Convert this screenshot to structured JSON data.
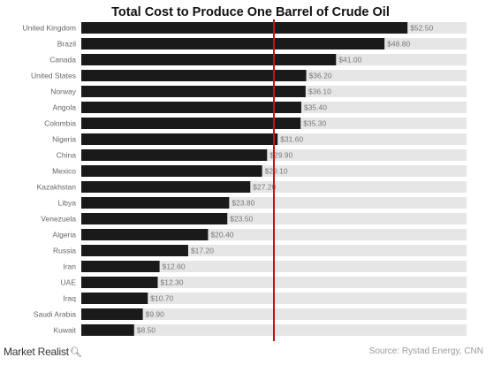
{
  "title": "Total Cost to Produce One Barrel of Crude Oil",
  "source": "Source: Rystad Energy, CNN",
  "brand": "Market Realist",
  "colors": {
    "bar": "#1a1a1a",
    "track": "#e6e6e6",
    "reference_line": "#cc1111",
    "label": "#666666",
    "value_label": "#777777"
  },
  "chart_data": {
    "type": "bar",
    "orientation": "horizontal",
    "title": "Total Cost to Produce One Barrel of Crude Oil",
    "categories": [
      "United Kingdom",
      "Brazil",
      "Canada",
      "United States",
      "Norway",
      "Angola",
      "Colombia",
      "Nigeria",
      "China",
      "Mexico",
      "Kazakhstan",
      "Libya",
      "Venezuela",
      "Algeria",
      "Russia",
      "Iran",
      "UAE",
      "Iraq",
      "Saudi Arabia",
      "Kuwait"
    ],
    "values": [
      52.5,
      48.8,
      41.0,
      36.2,
      36.1,
      35.4,
      35.3,
      31.6,
      29.9,
      29.1,
      27.2,
      23.8,
      23.5,
      20.4,
      17.2,
      12.6,
      12.3,
      10.7,
      9.9,
      8.5
    ],
    "value_labels": [
      "$52.50",
      "$48.80",
      "$41.00",
      "$36.20",
      "$36.10",
      "$35.40",
      "$35.30",
      "$31.60",
      "$29.90",
      "$29.10",
      "$27.20",
      "$23.80",
      "$23.50",
      "$20.40",
      "$17.20",
      "$12.60",
      "$12.30",
      "$10.70",
      "$9.90",
      "$8.50"
    ],
    "xlim": [
      0,
      62
    ],
    "reference_line": 31,
    "grid": false,
    "legend": "none"
  }
}
